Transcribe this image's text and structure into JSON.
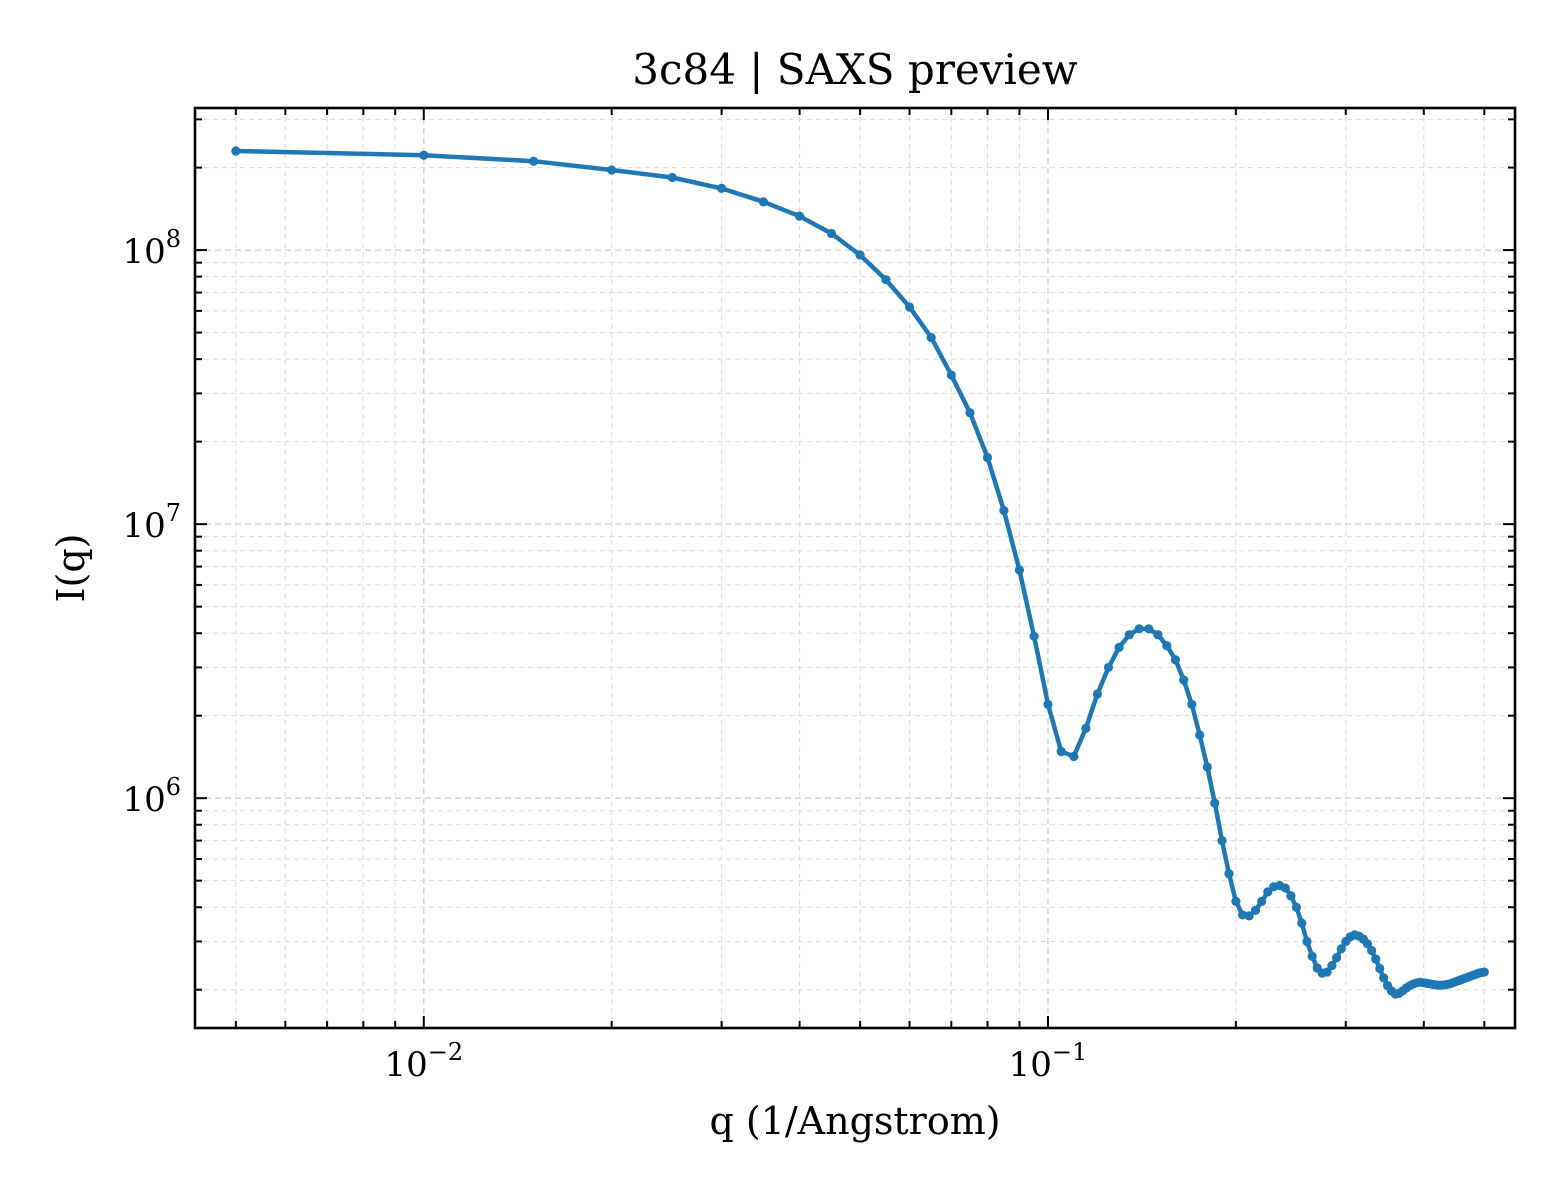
{
  "chart_data": {
    "type": "line",
    "title": "3c84 | SAXS preview",
    "xlabel": "q (1/Angstrom)",
    "ylabel": "I(q)",
    "xscale": "log",
    "yscale": "log",
    "xlim": [
      0.0043,
      0.56
    ],
    "ylim": [
      145000,
      330000000
    ],
    "grid": true,
    "x_ticks": [
      {
        "value": 0.01,
        "base": "10",
        "exp": "−2"
      },
      {
        "value": 0.1,
        "base": "10",
        "exp": "−1"
      }
    ],
    "y_ticks": [
      {
        "value": 1000000,
        "base": "10",
        "exp": "6"
      },
      {
        "value": 10000000,
        "base": "10",
        "exp": "7"
      },
      {
        "value": 100000000,
        "base": "10",
        "exp": "8"
      }
    ],
    "colors": {
      "series": "#1f77b4"
    },
    "series": [
      {
        "x": [
          0.005,
          0.01,
          0.015,
          0.02,
          0.025,
          0.03,
          0.035,
          0.04,
          0.045,
          0.05,
          0.055,
          0.06,
          0.065,
          0.07,
          0.075,
          0.08,
          0.085,
          0.09,
          0.095,
          0.1,
          0.105,
          0.11,
          0.115,
          0.12,
          0.125,
          0.13,
          0.135,
          0.14,
          0.145,
          0.15,
          0.155,
          0.16,
          0.165,
          0.17,
          0.175,
          0.18,
          0.185,
          0.19,
          0.195,
          0.2,
          0.205,
          0.21,
          0.215,
          0.22,
          0.225,
          0.23,
          0.235,
          0.24,
          0.245,
          0.25,
          0.255,
          0.26,
          0.265,
          0.27,
          0.275,
          0.28,
          0.285,
          0.29,
          0.295,
          0.3,
          0.305,
          0.31,
          0.315,
          0.32,
          0.325,
          0.33,
          0.335,
          0.34,
          0.345,
          0.35,
          0.355,
          0.36,
          0.365,
          0.37,
          0.375,
          0.38,
          0.385,
          0.39,
          0.395,
          0.4,
          0.405,
          0.41,
          0.415,
          0.42,
          0.425,
          0.43,
          0.435,
          0.44,
          0.445,
          0.45,
          0.455,
          0.46,
          0.465,
          0.47,
          0.475,
          0.48,
          0.485,
          0.49,
          0.495,
          0.5
        ],
        "y": [
          230000000,
          222000000,
          211000000,
          196000000,
          184000000,
          168000000,
          150000000,
          133000000,
          115000000,
          96000000,
          78000000,
          62000000,
          48000000,
          35000000,
          25500000,
          17500000,
          11200000,
          6800000,
          3900000,
          2200000,
          1480000,
          1420000,
          1800000,
          2400000,
          3000000,
          3550000,
          3950000,
          4150000,
          4150000,
          3950000,
          3600000,
          3200000,
          2700000,
          2200000,
          1700000,
          1300000,
          960000,
          700000,
          530000,
          420000,
          375000,
          372000,
          390000,
          420000,
          455000,
          475000,
          480000,
          470000,
          440000,
          400000,
          350000,
          300000,
          265000,
          240000,
          230000,
          232000,
          245000,
          262000,
          282000,
          300000,
          312000,
          317000,
          314000,
          306000,
          294000,
          278000,
          259000,
          239000,
          221000,
          207000,
          198000,
          193000,
          194000,
          198000,
          203000,
          207000,
          210000,
          212000,
          213000,
          212000,
          211000,
          210000,
          209000,
          208000,
          208000,
          208000,
          209000,
          210000,
          212000,
          214000,
          216000,
          218000,
          220000,
          222000,
          224000,
          226000,
          228000,
          230000,
          231000,
          232000
        ]
      }
    ]
  }
}
